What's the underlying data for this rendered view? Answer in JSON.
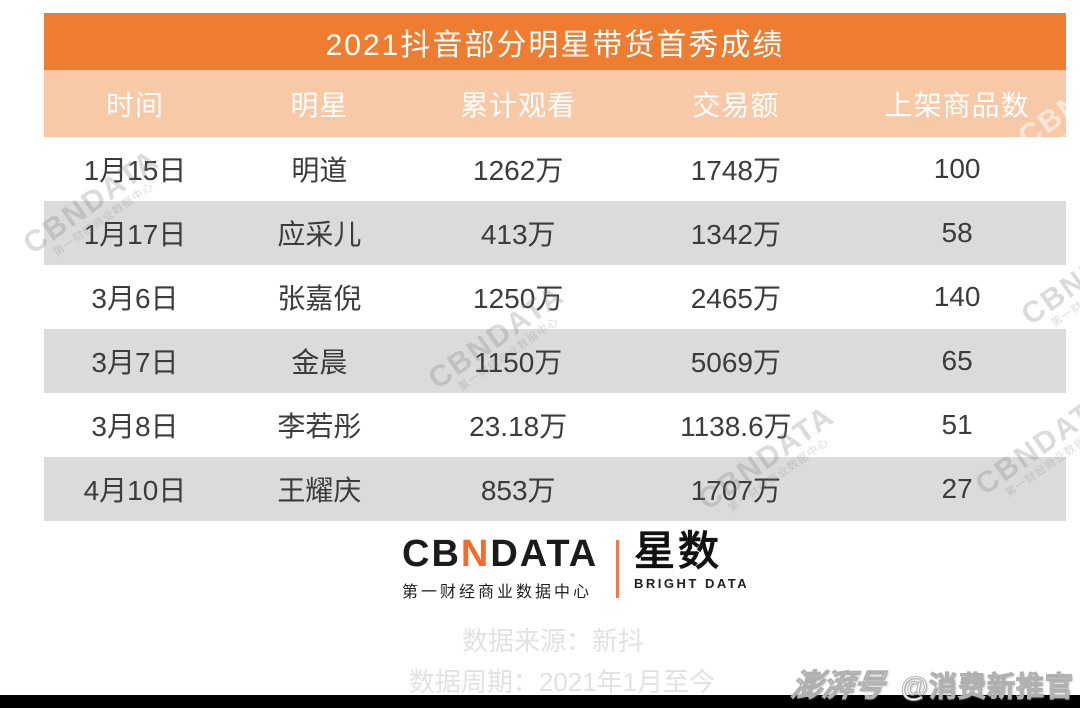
{
  "title": "2021抖音部分明星带货首秀成绩",
  "chart_data": {
    "type": "table",
    "title": "2021抖音部分明星带货首秀成绩",
    "columns": [
      "时间",
      "明星",
      "累计观看",
      "交易额",
      "上架商品数"
    ],
    "rows": [
      [
        "1月15日",
        "明道",
        "1262万",
        "1748万",
        "100"
      ],
      [
        "1月17日",
        "应采儿",
        "413万",
        "1342万",
        "58"
      ],
      [
        "3月6日",
        "张嘉倪",
        "1250万",
        "2465万",
        "140"
      ],
      [
        "3月7日",
        "金晨",
        "1150万",
        "5069万",
        "65"
      ],
      [
        "3月8日",
        "李若彤",
        "23.18万",
        "1138.6万",
        "51"
      ],
      [
        "4月10日",
        "王耀庆",
        "853万",
        "1707万",
        "27"
      ]
    ]
  },
  "footer": {
    "cbndata_prefix": "CB",
    "cbndata_n": "N",
    "cbndata_suffix": "DATA",
    "cbndata_subtitle": "第一财经商业数据中心",
    "xingshu_name": "星数",
    "xingshu_subtitle": "BRIGHT DATA",
    "source_line": "数据来源：新抖",
    "period_line": "数据周期：2021年1月至今"
  },
  "watermark": {
    "brand": "CBNDATA",
    "subtitle": "第一财经商业数据中心"
  },
  "corner_watermark": {
    "logo": "澎湃号",
    "handle": "@消费新推官"
  },
  "colors": {
    "banner_orange": "#EE7D32",
    "header_light_orange": "#F7C9A7",
    "row_alt_gray": "#DBDBDB",
    "logo_accent_orange": "#F26C2B",
    "cell_text": "#3C3C3C",
    "footer_text_gray": "#E2E2E2"
  }
}
